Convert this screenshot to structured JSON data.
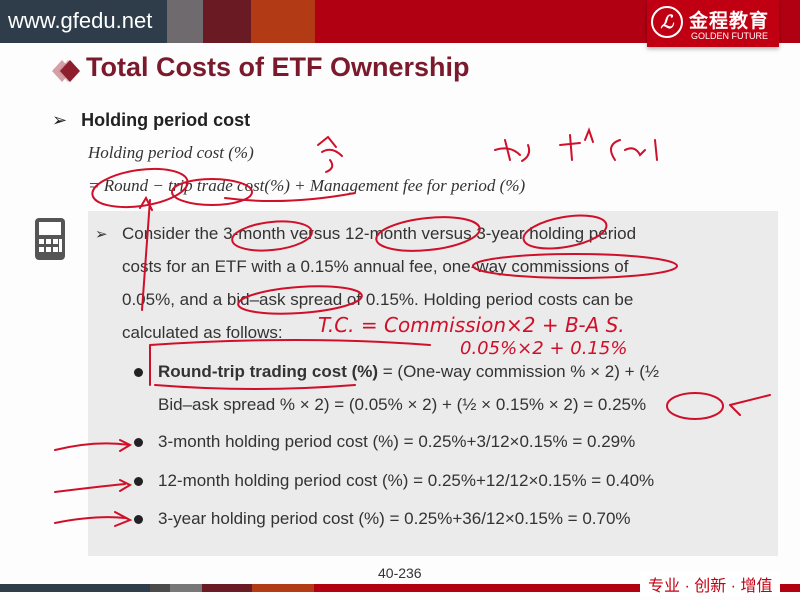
{
  "header": {
    "site": "www.gfedu.net",
    "logo_cn": "金程教育",
    "logo_en": "GOLDEN FUTURE",
    "logo_mark": "G",
    "bar_colors": [
      "#2e3d49",
      "#6f6a6d",
      "#6a1a22",
      "#b23a14",
      "#b00012"
    ]
  },
  "slide": {
    "title": "Total Costs of ETF Ownership",
    "section_heading": "Holding period cost",
    "formula_line1": "Holding period cost (%)",
    "formula_line2": "= Round − trip trade cost(%) + Management fee for period (%)",
    "example": {
      "lines": [
        "Consider the 3-month versus 12-month versus 3-year holding period",
        "costs for an ETF with a 0.15% annual fee, one-way commissions of",
        "0.05%, and a bid–ask spread of 0.15%. Holding period costs can be",
        "calculated as follows:"
      ],
      "round_trip_label": "Round-trip trading cost (%)",
      "round_trip_rest": " = (One-way commission % × 2) + (½",
      "round_trip_line2": "Bid–ask spread % × 2) = (0.05% × 2) + (½ × 0.15% × 2) = 0.25%",
      "bullets": [
        "3-month holding period cost (%) = 0.25%+3/12×0.15% = 0.29%",
        "12-month holding period cost (%) = 0.25%+12/12×0.15% = 0.40%",
        "3-year holding period cost (%) = 0.25%+36/12×0.15% = 0.70%"
      ]
    },
    "page_number": "40-236"
  },
  "annotations": {
    "handwritten_1": "T.C. = Commission×2 + B-A S.",
    "handwritten_2": "0.05%×2 + 0.15%",
    "ink_color": "#d0102a"
  },
  "footer": {
    "tagline": "专业 · 创新 · 增值"
  }
}
